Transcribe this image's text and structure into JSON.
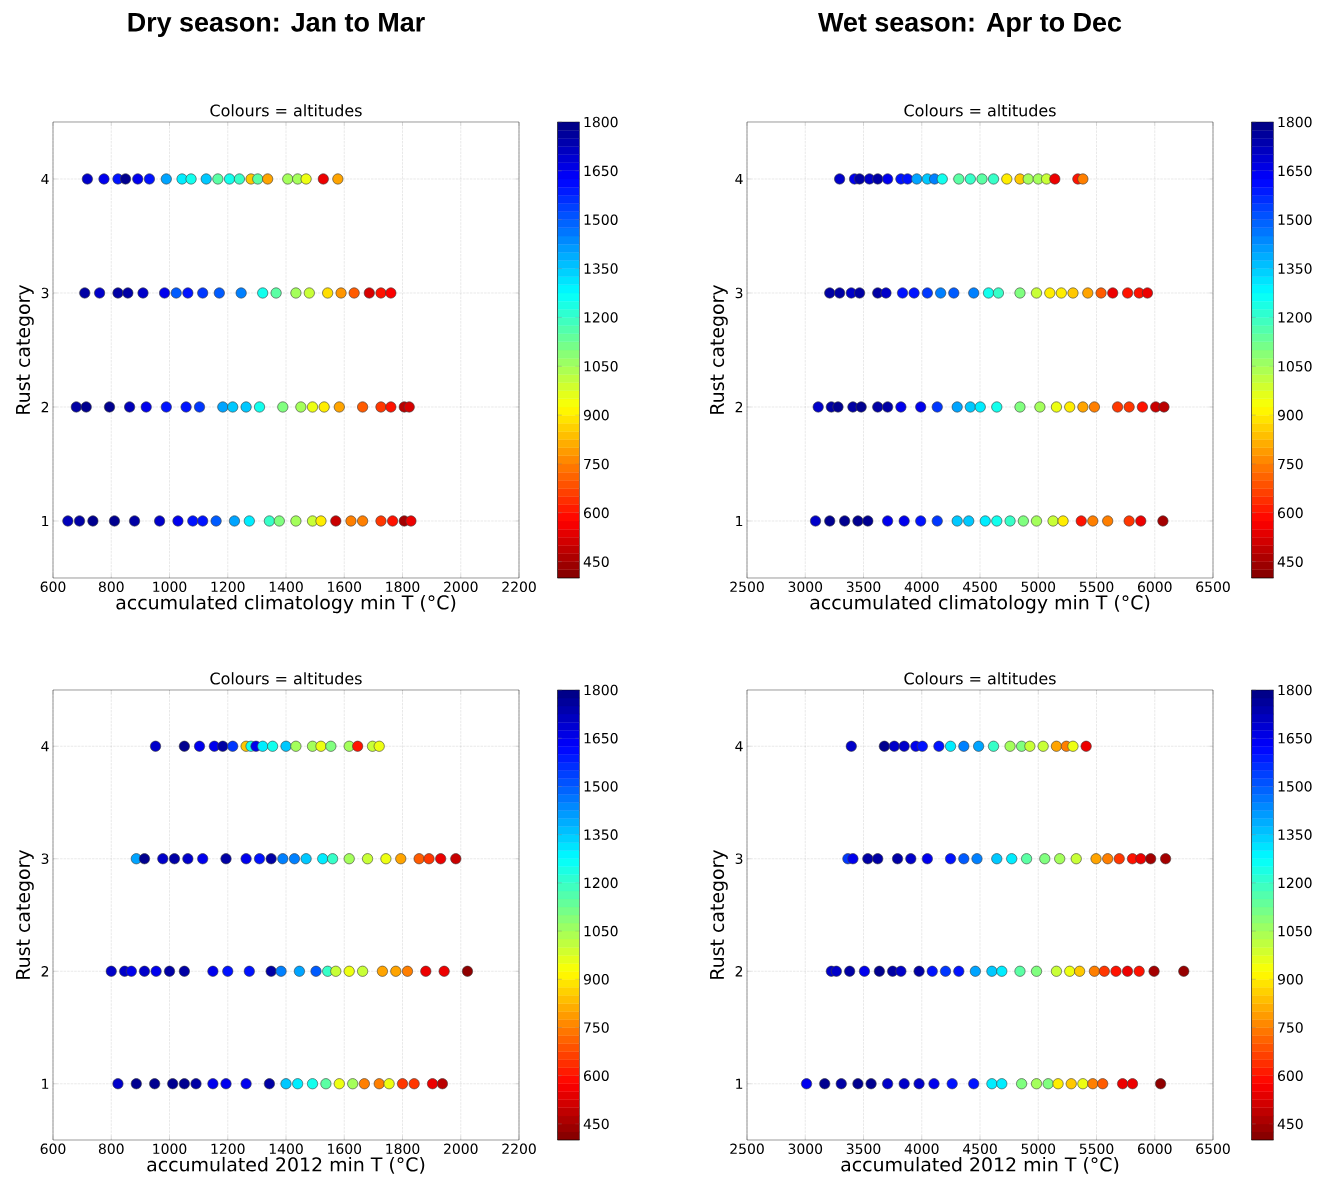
{
  "chart_data": [
    {
      "type": "scatter",
      "title": "Dry season: Jan to Mar",
      "subtitle": "Colours = altitudes",
      "xlabel": "accumulated climatology min T (°C)",
      "ylabel": "Rust category",
      "xlim": [
        600,
        2200
      ],
      "xticks": [
        600,
        800,
        1000,
        1200,
        1400,
        1600,
        1800,
        2000,
        2200
      ],
      "ylim": [
        0.5,
        4.5
      ],
      "yticks": [
        1,
        2,
        3,
        4
      ],
      "clim": [
        400,
        1800
      ],
      "cticks": [
        450,
        600,
        750,
        900,
        1050,
        1200,
        1350,
        1500,
        1650,
        1800
      ],
      "grid": true,
      "marker": "circle",
      "x": [
        718,
        775,
        823,
        849,
        891,
        931,
        989,
        1043,
        1074,
        1126,
        1166,
        1206,
        1240,
        1280,
        1303,
        1337,
        1406,
        1440,
        1469,
        1528,
        1578,
        709,
        760,
        823,
        857,
        909,
        983,
        1023,
        1063,
        1114,
        1171,
        1246,
        1320,
        1366,
        1434,
        1480,
        1543,
        1589,
        1634,
        1686,
        1726,
        1760,
        680,
        714,
        794,
        863,
        920,
        989,
        1057,
        1103,
        1183,
        1217,
        1263,
        1309,
        1389,
        1451,
        1491,
        1531,
        1583,
        1663,
        1726,
        1760,
        1806,
        1823,
        651,
        691,
        737,
        811,
        880,
        966,
        1029,
        1080,
        1114,
        1160,
        1223,
        1274,
        1343,
        1377,
        1434,
        1491,
        1520,
        1571,
        1623,
        1663,
        1726,
        1766,
        1806,
        1829
      ],
      "values": [
        4,
        4,
        4,
        4,
        4,
        4,
        4,
        4,
        4,
        4,
        4,
        4,
        4,
        4,
        4,
        4,
        4,
        4,
        4,
        4,
        4,
        3,
        3,
        3,
        3,
        3,
        3,
        3,
        3,
        3,
        3,
        3,
        3,
        3,
        3,
        3,
        3,
        3,
        3,
        3,
        3,
        3,
        2,
        2,
        2,
        2,
        2,
        2,
        2,
        2,
        2,
        2,
        2,
        2,
        2,
        2,
        2,
        2,
        2,
        2,
        2,
        2,
        2,
        2,
        1,
        1,
        1,
        1,
        1,
        1,
        1,
        1,
        1,
        1,
        1,
        1,
        1,
        1,
        1,
        1,
        1,
        1,
        1,
        1,
        1,
        1,
        1,
        1
      ],
      "cvalues": [
        1700,
        1650,
        1600,
        1780,
        1650,
        1600,
        1400,
        1300,
        1250,
        1350,
        1150,
        1250,
        1200,
        850,
        1150,
        800,
        1050,
        1050,
        950,
        550,
        800,
        1750,
        1700,
        1750,
        1750,
        1700,
        1650,
        1500,
        1600,
        1550,
        1500,
        1450,
        1250,
        1150,
        1050,
        1000,
        880,
        780,
        700,
        520,
        600,
        570,
        1750,
        1780,
        1780,
        1720,
        1650,
        1600,
        1600,
        1550,
        1400,
        1350,
        1350,
        1250,
        1100,
        1050,
        950,
        900,
        800,
        700,
        650,
        600,
        480,
        520,
        1720,
        1750,
        1780,
        1780,
        1750,
        1700,
        1650,
        1600,
        1600,
        1500,
        1400,
        1300,
        1200,
        1100,
        1050,
        1000,
        900,
        500,
        750,
        750,
        650,
        600,
        450,
        550
      ]
    },
    {
      "type": "scatter",
      "title": "Wet season: Apr to Dec",
      "subtitle": "Colours = altitudes",
      "xlabel": "accumulated climatology min T (°C)",
      "ylabel": "Rust category",
      "xlim": [
        2500,
        6500
      ],
      "xticks": [
        2500,
        3000,
        3500,
        4000,
        4500,
        5000,
        5500,
        6000,
        6500
      ],
      "ylim": [
        0.5,
        4.5
      ],
      "yticks": [
        1,
        2,
        3,
        4
      ],
      "clim": [
        400,
        1800
      ],
      "cticks": [
        450,
        600,
        750,
        900,
        1050,
        1200,
        1350,
        1500,
        1650,
        1800
      ],
      "grid": true,
      "marker": "circle",
      "x": [
        3295,
        3423,
        3466,
        3551,
        3622,
        3707,
        3821,
        3878,
        3957,
        4048,
        4110,
        4176,
        4318,
        4417,
        4517,
        4616,
        4730,
        4843,
        4914,
        5000,
        5071,
        5142,
        5340,
        5383,
        3210,
        3295,
        3395,
        3466,
        3622,
        3693,
        3835,
        3934,
        4048,
        4162,
        4275,
        4446,
        4573,
        4658,
        4843,
        4985,
        5099,
        5198,
        5298,
        5425,
        5539,
        5639,
        5767,
        5866,
        5937,
        3111,
        3224,
        3281,
        3409,
        3480,
        3622,
        3707,
        3821,
        3991,
        4133,
        4304,
        4417,
        4502,
        4644,
        4843,
        5014,
        5156,
        5270,
        5383,
        5482,
        5681,
        5780,
        5894,
        6008,
        6079,
        3088,
        3210,
        3338,
        3452,
        3537,
        3707,
        3849,
        3991,
        4133,
        4304,
        4403,
        4545,
        4644,
        4758,
        4872,
        4985,
        5127,
        5213,
        5369,
        5468,
        5596,
        5780,
        5880,
        6070
      ],
      "values": [
        4,
        4,
        4,
        4,
        4,
        4,
        4,
        4,
        4,
        4,
        4,
        4,
        4,
        4,
        4,
        4,
        4,
        4,
        4,
        4,
        4,
        4,
        4,
        4,
        3,
        3,
        3,
        3,
        3,
        3,
        3,
        3,
        3,
        3,
        3,
        3,
        3,
        3,
        3,
        3,
        3,
        3,
        3,
        3,
        3,
        3,
        3,
        3,
        3,
        2,
        2,
        2,
        2,
        2,
        2,
        2,
        2,
        2,
        2,
        2,
        2,
        2,
        2,
        2,
        2,
        2,
        2,
        2,
        2,
        2,
        2,
        2,
        2,
        2,
        1,
        1,
        1,
        1,
        1,
        1,
        1,
        1,
        1,
        1,
        1,
        1,
        1,
        1,
        1,
        1,
        1,
        1,
        1,
        1,
        1,
        1,
        1,
        1
      ],
      "cvalues": [
        1700,
        1650,
        1750,
        1700,
        1750,
        1650,
        1600,
        1600,
        1400,
        1350,
        1450,
        1250,
        1150,
        1200,
        1150,
        1200,
        900,
        850,
        1050,
        1050,
        1000,
        550,
        600,
        750,
        1750,
        1750,
        1700,
        1750,
        1750,
        1700,
        1600,
        1600,
        1550,
        1450,
        1500,
        1450,
        1250,
        1200,
        1100,
        1000,
        900,
        900,
        850,
        800,
        700,
        550,
        600,
        600,
        550,
        1700,
        1750,
        1780,
        1750,
        1780,
        1750,
        1750,
        1650,
        1650,
        1550,
        1400,
        1350,
        1300,
        1250,
        1100,
        1050,
        950,
        900,
        800,
        750,
        650,
        650,
        600,
        500,
        480,
        1700,
        1780,
        1780,
        1780,
        1780,
        1650,
        1650,
        1600,
        1550,
        1350,
        1350,
        1300,
        1250,
        1200,
        1100,
        1050,
        1000,
        900,
        600,
        750,
        750,
        650,
        550,
        450
      ]
    },
    {
      "type": "scatter",
      "title": "Colours = altitudes",
      "xlabel": "accumulated 2012 min T (°C)",
      "ylabel": "Rust category",
      "xlim": [
        600,
        2200
      ],
      "xticks": [
        600,
        800,
        1000,
        1200,
        1400,
        1600,
        1800,
        2000,
        2200
      ],
      "ylim": [
        0.5,
        4.5
      ],
      "yticks": [
        1,
        2,
        3,
        4
      ],
      "clim": [
        400,
        1800
      ],
      "cticks": [
        450,
        600,
        750,
        900,
        1050,
        1200,
        1350,
        1500,
        1650,
        1800
      ],
      "grid": true,
      "marker": "circle",
      "x": [
        952,
        1051,
        1103,
        1154,
        1183,
        1217,
        1263,
        1280,
        1297,
        1320,
        1354,
        1400,
        1434,
        1491,
        1520,
        1554,
        1617,
        1646,
        1697,
        1720,
        886,
        914,
        977,
        1017,
        1063,
        1114,
        1194,
        1263,
        1309,
        1349,
        1389,
        1429,
        1469,
        1526,
        1560,
        1617,
        1680,
        1743,
        1794,
        1857,
        1891,
        1931,
        1983,
        800,
        846,
        869,
        914,
        954,
        1000,
        1051,
        1149,
        1200,
        1274,
        1349,
        1383,
        1446,
        1503,
        1543,
        1571,
        1617,
        1663,
        1731,
        1777,
        1817,
        1880,
        1943,
        2023,
        823,
        886,
        949,
        1011,
        1051,
        1091,
        1149,
        1194,
        1263,
        1343,
        1400,
        1440,
        1491,
        1537,
        1583,
        1629,
        1669,
        1720,
        1754,
        1800,
        1840,
        1903,
        1937
      ],
      "values": [
        4,
        4,
        4,
        4,
        4,
        4,
        4,
        4,
        4,
        4,
        4,
        4,
        4,
        4,
        4,
        4,
        4,
        4,
        4,
        4,
        3,
        3,
        3,
        3,
        3,
        3,
        3,
        3,
        3,
        3,
        3,
        3,
        3,
        3,
        3,
        3,
        3,
        3,
        3,
        3,
        3,
        3,
        3,
        2,
        2,
        2,
        2,
        2,
        2,
        2,
        2,
        2,
        2,
        2,
        2,
        2,
        2,
        2,
        2,
        2,
        2,
        2,
        2,
        2,
        2,
        2,
        2,
        1,
        1,
        1,
        1,
        1,
        1,
        1,
        1,
        1,
        1,
        1,
        1,
        1,
        1,
        1,
        1,
        1,
        1,
        1,
        1,
        1,
        1,
        1
      ],
      "cvalues": [
        1700,
        1780,
        1650,
        1650,
        1750,
        1550,
        850,
        1250,
        1650,
        1300,
        1250,
        1350,
        1050,
        1050,
        950,
        1100,
        1050,
        600,
        1000,
        950,
        1400,
        1780,
        1700,
        1750,
        1700,
        1650,
        1750,
        1650,
        1600,
        1750,
        1450,
        1450,
        1350,
        1300,
        1200,
        1050,
        1000,
        950,
        800,
        700,
        650,
        550,
        500,
        1700,
        1700,
        1650,
        1700,
        1650,
        1750,
        1750,
        1650,
        1600,
        1600,
        1750,
        1450,
        1400,
        1500,
        1200,
        1000,
        950,
        1000,
        800,
        800,
        750,
        550,
        550,
        420,
        1700,
        1780,
        1780,
        1780,
        1780,
        1750,
        1650,
        1650,
        1650,
        1750,
        1350,
        1300,
        1250,
        1150,
        950,
        1050,
        750,
        750,
        950,
        650,
        650,
        550,
        480
      ]
    },
    {
      "type": "scatter",
      "title": "Colours = altitudes",
      "xlabel": "accumulated 2012 min T (°C)",
      "ylabel": "Rust category",
      "xlim": [
        2500,
        6500
      ],
      "xticks": [
        2500,
        3000,
        3500,
        4000,
        4500,
        5000,
        5500,
        6000,
        6500
      ],
      "ylim": [
        0.5,
        4.5
      ],
      "yticks": [
        1,
        2,
        3,
        4
      ],
      "clim": [
        400,
        1800
      ],
      "cticks": [
        450,
        600,
        750,
        900,
        1050,
        1200,
        1350,
        1500,
        1650,
        1800
      ],
      "grid": true,
      "marker": "circle",
      "x": [
        3395,
        3679,
        3764,
        3849,
        3949,
        4005,
        4147,
        4247,
        4361,
        4488,
        4616,
        4758,
        4857,
        4928,
        5042,
        5156,
        5241,
        5298,
        5411,
        3366,
        3409,
        3537,
        3622,
        3792,
        3906,
        4048,
        4247,
        4361,
        4474,
        4644,
        4772,
        4900,
        5056,
        5184,
        5326,
        5496,
        5596,
        5695,
        5809,
        5880,
        5965,
        6093,
        3224,
        3267,
        3381,
        3508,
        3636,
        3750,
        3821,
        3977,
        4090,
        4204,
        4318,
        4460,
        4602,
        4687,
        4843,
        4985,
        5156,
        5270,
        5355,
        5482,
        5567,
        5667,
        5766,
        5866,
        5994,
        6249,
        3011,
        3167,
        3309,
        3452,
        3565,
        3707,
        3849,
        3977,
        4105,
        4261,
        4446,
        4602,
        4687,
        4857,
        4985,
        5085,
        5170,
        5283,
        5383,
        5468,
        5553,
        5724,
        5809,
        6050
      ],
      "values": [
        4,
        4,
        4,
        4,
        4,
        4,
        4,
        4,
        4,
        4,
        4,
        4,
        4,
        4,
        4,
        4,
        4,
        4,
        4,
        3,
        3,
        3,
        3,
        3,
        3,
        3,
        3,
        3,
        3,
        3,
        3,
        3,
        3,
        3,
        3,
        3,
        3,
        3,
        3,
        3,
        3,
        3,
        2,
        2,
        2,
        2,
        2,
        2,
        2,
        2,
        2,
        2,
        2,
        2,
        2,
        2,
        2,
        2,
        2,
        2,
        2,
        2,
        2,
        2,
        2,
        2,
        2,
        2,
        1,
        1,
        1,
        1,
        1,
        1,
        1,
        1,
        1,
        1,
        1,
        1,
        1,
        1,
        1,
        1,
        1,
        1,
        1,
        1,
        1,
        1,
        1,
        1
      ],
      "cvalues": [
        1700,
        1780,
        1700,
        1700,
        1650,
        1600,
        1600,
        1300,
        1450,
        1400,
        1200,
        1050,
        1100,
        1000,
        1000,
        800,
        750,
        950,
        550,
        1550,
        1650,
        1750,
        1750,
        1750,
        1700,
        1650,
        1600,
        1500,
        1450,
        1350,
        1300,
        1150,
        1100,
        1050,
        1000,
        800,
        750,
        650,
        600,
        550,
        450,
        450,
        1700,
        1700,
        1750,
        1650,
        1780,
        1750,
        1700,
        1750,
        1600,
        1550,
        1600,
        1400,
        1350,
        1300,
        1150,
        1100,
        1000,
        950,
        850,
        750,
        650,
        600,
        550,
        600,
        450,
        430,
        1650,
        1780,
        1750,
        1780,
        1780,
        1700,
        1700,
        1700,
        1650,
        1600,
        1600,
        1300,
        1300,
        1100,
        1050,
        1100,
        900,
        850,
        950,
        750,
        700,
        550,
        550,
        420
      ]
    }
  ]
}
